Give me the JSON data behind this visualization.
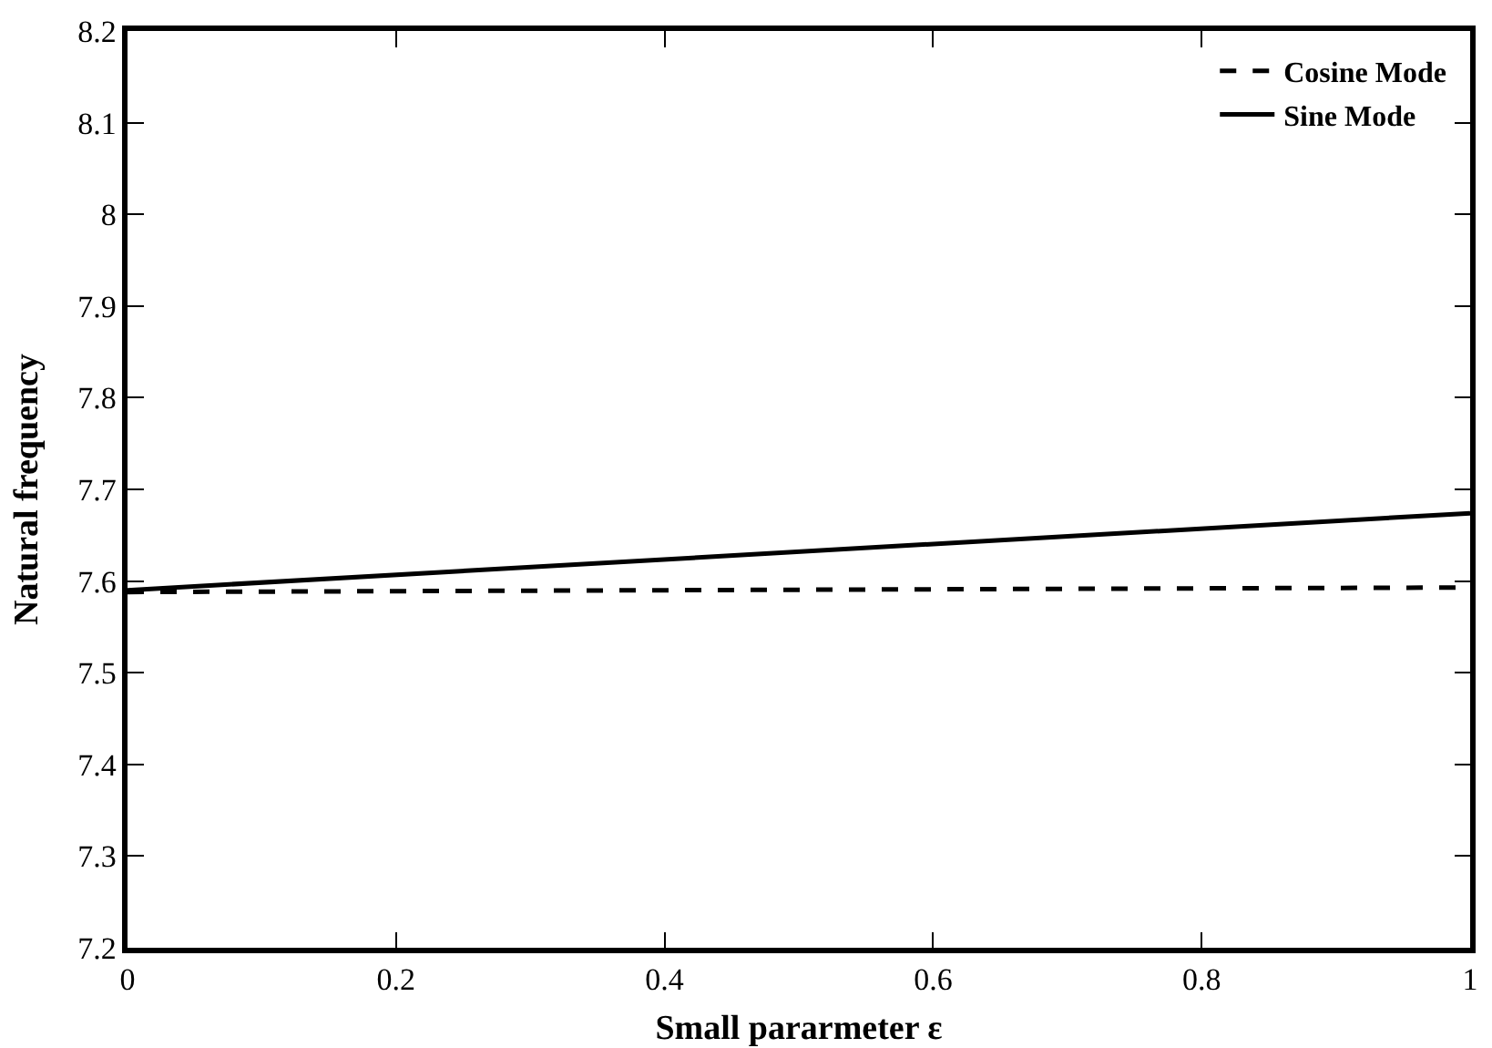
{
  "chart_data": {
    "type": "line",
    "xlabel": "Small pararmeter ε",
    "ylabel": "Natural frequency",
    "x": [
      0,
      1
    ],
    "series": [
      {
        "name": "Cosine Mode",
        "color": "#000000",
        "line_style": "dashed",
        "values": [
          7.588,
          7.593
        ]
      },
      {
        "name": "Sine Mode",
        "color": "#000000",
        "line_style": "solid",
        "values": [
          7.59,
          7.674
        ]
      }
    ],
    "xlim": [
      0,
      1
    ],
    "xticks": [
      0,
      0.2,
      0.4,
      0.6,
      0.8,
      1
    ],
    "ylim": [
      7.2,
      8.2
    ],
    "yticks": [
      7.2,
      7.3,
      7.4,
      7.5,
      7.6,
      7.7,
      7.8,
      7.9,
      8,
      8.1,
      8.2
    ],
    "grid": false,
    "legend": "top right",
    "marker": "none"
  }
}
